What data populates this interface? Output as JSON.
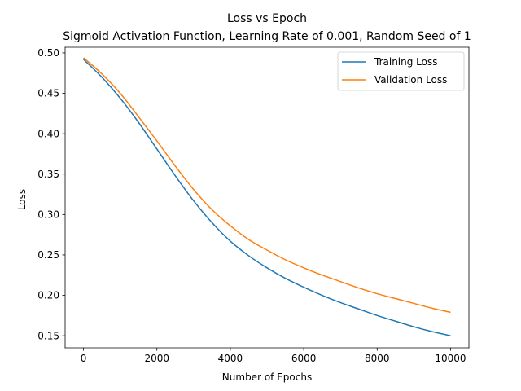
{
  "chart_data": {
    "type": "line",
    "title": "Loss vs Epoch",
    "subtitle": "Sigmoid Activation Function, Learning Rate of 0.001, Random Seed of 1",
    "xlabel": "Number of Epochs",
    "ylabel": "Loss",
    "xlim": [
      -500,
      10500
    ],
    "ylim": [
      0.135,
      0.507
    ],
    "xticks": [
      0,
      2000,
      4000,
      6000,
      8000,
      10000
    ],
    "xtick_labels": [
      "0",
      "2000",
      "4000",
      "6000",
      "8000",
      "10000"
    ],
    "yticks": [
      0.15,
      0.2,
      0.25,
      0.3,
      0.35,
      0.4,
      0.45,
      0.5
    ],
    "ytick_labels": [
      "0.15",
      "0.20",
      "0.25",
      "0.30",
      "0.35",
      "0.40",
      "0.45",
      "0.50"
    ],
    "grid": false,
    "legend_position": "top-right",
    "x": [
      0,
      500,
      1000,
      1500,
      2000,
      2500,
      3000,
      3500,
      4000,
      4500,
      5000,
      5500,
      6000,
      6500,
      7000,
      7500,
      8000,
      8500,
      9000,
      9500,
      10000
    ],
    "series": [
      {
        "name": "Training Loss",
        "color": "#1f77b4",
        "values": [
          0.492,
          0.47,
          0.444,
          0.414,
          0.381,
          0.348,
          0.317,
          0.29,
          0.267,
          0.249,
          0.234,
          0.221,
          0.21,
          0.2,
          0.191,
          0.183,
          0.175,
          0.168,
          0.161,
          0.155,
          0.15
        ]
      },
      {
        "name": "Validation Loss",
        "color": "#ff7f0e",
        "values": [
          0.494,
          0.474,
          0.45,
          0.421,
          0.391,
          0.36,
          0.331,
          0.306,
          0.286,
          0.269,
          0.256,
          0.244,
          0.234,
          0.225,
          0.217,
          0.209,
          0.202,
          0.196,
          0.19,
          0.184,
          0.179
        ]
      }
    ]
  }
}
